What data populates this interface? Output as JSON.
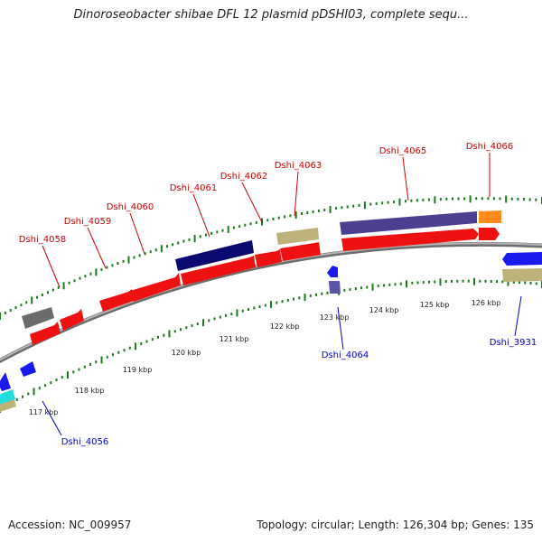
{
  "header": {
    "title": "Dinoroseobacter shibae DFL 12 plasmid pDSHI03, complete sequ..."
  },
  "footer": {
    "accession": "Accession: NC_009957",
    "summary": "Topology: circular; Length: 126,304 bp; Genes: 135"
  },
  "colors": {
    "forward_label": "#cc0000",
    "reverse_label": "#0000cc",
    "tick": "#1f7a1f",
    "backbone": "#8c8c8c"
  },
  "scale_labels": [
    "117 kbp",
    "118 kbp",
    "119 kbp",
    "120 kbp",
    "121 kbp",
    "122 kbp",
    "123 kbp",
    "124 kbp",
    "125 kbp",
    "126 kbp"
  ],
  "gene_labels": {
    "forward": [
      "Dshi_4058",
      "Dshi_4059",
      "Dshi_4060",
      "Dshi_4061",
      "Dshi_4062",
      "Dshi_4063",
      "Dshi_4065",
      "Dshi_4066"
    ],
    "reverse": [
      "Dshi_4056",
      "Dshi_4064",
      "Dshi_3931"
    ]
  }
}
